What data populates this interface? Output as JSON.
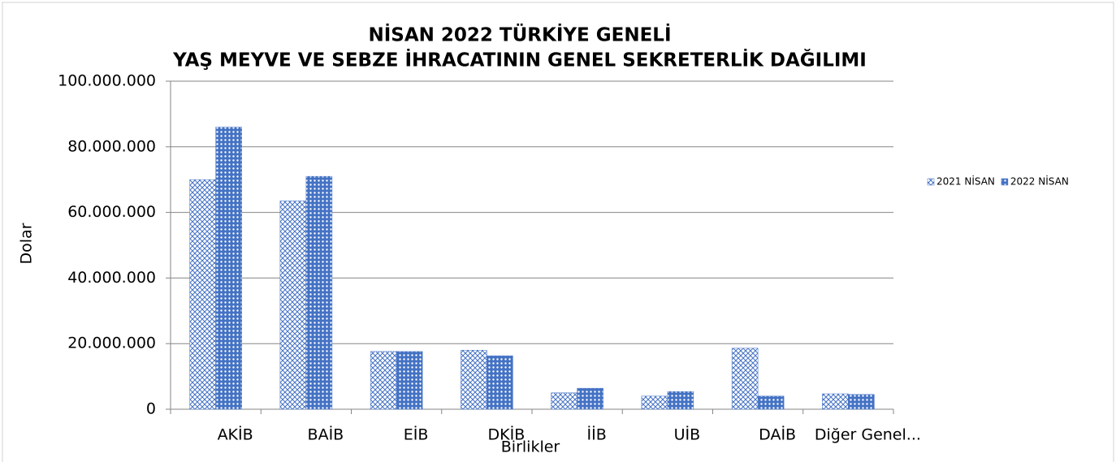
{
  "chart_data": {
    "type": "bar",
    "title": [
      "NİSAN 2022 TÜRKİYE GENELİ",
      "YAŞ MEYVE VE SEBZE İHRACATININ GENEL SEKRETERLİK DAĞILIMI"
    ],
    "x_label": "Birlikler",
    "y_label": "Dolar",
    "categories": [
      "AKİB",
      "BAİB",
      "EİB",
      "DKİB",
      "İİB",
      "UİB",
      "DAİB",
      "Diğer Genel..."
    ],
    "series": [
      {
        "name": "2021 NİSAN",
        "color": "#4472c4",
        "values": [
          70000000,
          63500000,
          17600000,
          18000000,
          5000000,
          4000000,
          18600000,
          4700000
        ]
      },
      {
        "name": "2022 NİSAN",
        "color": "#4472c4",
        "values": [
          86000000,
          71000000,
          17600000,
          16300000,
          6400000,
          5400000,
          4000000,
          4500000
        ]
      }
    ],
    "ylim": [
      0,
      100000000
    ],
    "yticks": [
      0,
      {
        "value": 20000000,
        "label": "20.000.000"
      },
      {
        "value": 40000000,
        "label": "40.000.000"
      },
      {
        "value": 60000000,
        "label": "60.000.000"
      },
      {
        "value": 80000000,
        "label": "80.000.000"
      },
      {
        "value": 100000000,
        "label": "100.000.000"
      }
    ],
    "grid": true,
    "legend": "right"
  }
}
